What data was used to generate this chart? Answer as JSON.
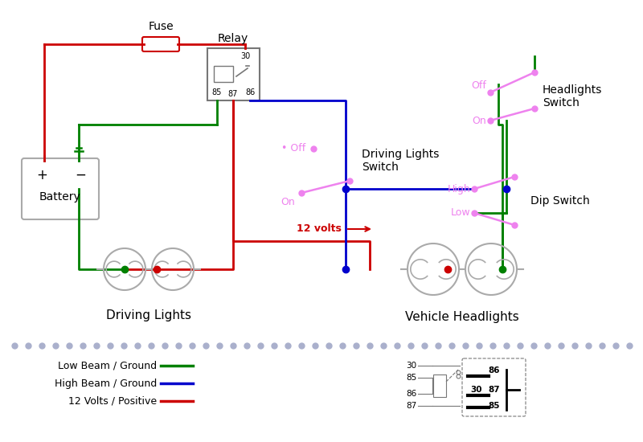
{
  "bg_color": "#ffffff",
  "green_color": "#008000",
  "blue_color": "#0000cc",
  "red_color": "#cc0000",
  "pink_color": "#ee82ee",
  "gray_color": "#777777",
  "light_gray": "#aaaaaa",
  "dot_color": "#aab0cc",
  "legend_items": [
    {
      "label": "Low Beam / Ground",
      "color": "#008000"
    },
    {
      "label": "High Beam / Ground",
      "color": "#0000cc"
    },
    {
      "label": "12 Volts / Positive",
      "color": "#cc0000"
    }
  ],
  "fuse_label": "Fuse",
  "relay_label": "Relay",
  "battery_label": "Battery",
  "driving_lights_label": "Driving Lights",
  "vehicle_headlights_label": "Vehicle Headlights",
  "driving_lights_switch_label": "Driving Lights\nSwitch",
  "headlights_switch_label": "Headlights\nSwitch",
  "dip_switch_label": "Dip Switch",
  "volts_label": "12 volts",
  "off_label": "Off",
  "on_label": "On",
  "high_label": "High",
  "low_label": "Low"
}
